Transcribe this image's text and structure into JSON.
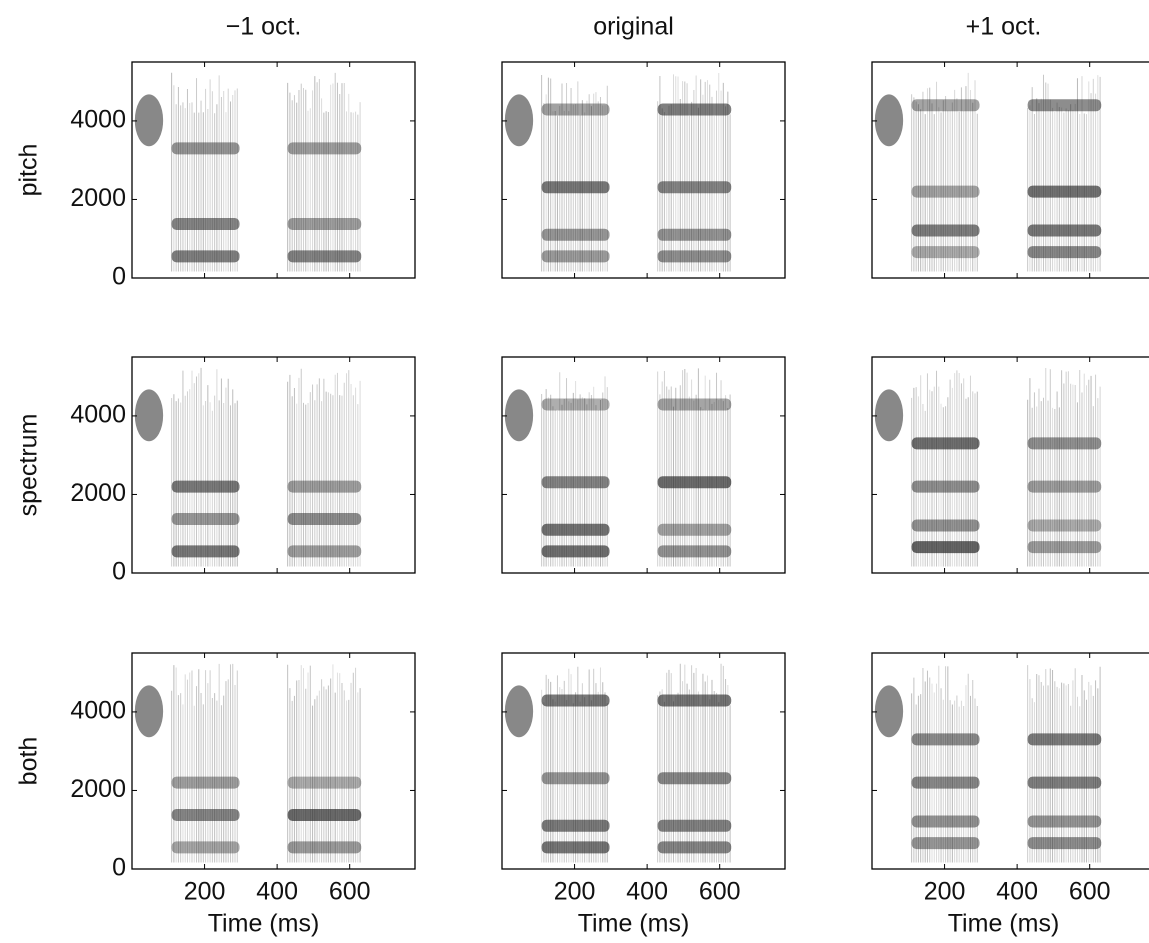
{
  "chart_data": {
    "type": "spectrogram",
    "columns": [
      "−1 oct.",
      "original",
      "+1 oct."
    ],
    "rows": [
      "pitch",
      "spectrum",
      "both"
    ],
    "xlabel": "Time (ms)",
    "xlim": [
      0,
      780
    ],
    "xticks": [
      200,
      400,
      600
    ],
    "ylim": [
      0,
      5500
    ],
    "yticks": [
      0,
      2000,
      4000
    ]
  }
}
